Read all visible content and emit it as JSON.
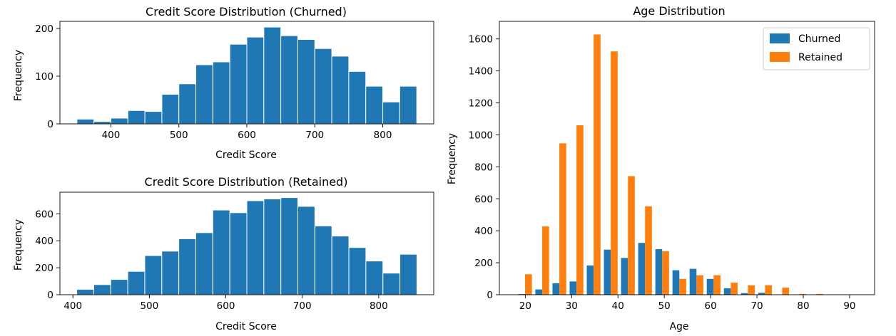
{
  "chart_data": [
    {
      "type": "bar",
      "title": "Credit Score Distribution (Churned)",
      "xlabel": "Credit Score",
      "ylabel": "Frequency",
      "xlim": [
        325,
        875
      ],
      "ylim": [
        0,
        215
      ],
      "xticks": [
        400,
        500,
        600,
        700,
        800
      ],
      "yticks": [
        0,
        100,
        200
      ],
      "bin_edges": [
        350,
        375,
        400,
        425,
        450,
        475,
        500,
        525,
        550,
        575,
        600,
        625,
        650,
        675,
        700,
        725,
        750,
        775,
        800,
        825,
        850
      ],
      "values": [
        10,
        5,
        12,
        28,
        26,
        62,
        84,
        124,
        130,
        167,
        182,
        203,
        185,
        177,
        158,
        142,
        110,
        79,
        46,
        79
      ],
      "color": "#1f77b4",
      "edgecolor": "#ffffff"
    },
    {
      "type": "bar",
      "title": "Credit Score Distribution (Retained)",
      "xlabel": "Credit Score",
      "ylabel": "Frequency",
      "xlim": [
        383,
        872
      ],
      "ylim": [
        0,
        760
      ],
      "xticks": [
        400,
        500,
        600,
        700,
        800
      ],
      "yticks": [
        0,
        200,
        400,
        600
      ],
      "bin_edges": [
        405,
        427.25,
        449.5,
        471.75,
        494,
        516.25,
        538.5,
        560.75,
        583,
        605.25,
        627.5,
        649.75,
        672,
        694.25,
        716.5,
        738.75,
        761,
        783.25,
        805.5,
        827.75,
        850
      ],
      "values": [
        40,
        75,
        113,
        173,
        290,
        323,
        415,
        460,
        628,
        608,
        697,
        710,
        720,
        655,
        510,
        435,
        350,
        250,
        160,
        300
      ],
      "color": "#1f77b4",
      "edgecolor": "#ffffff"
    },
    {
      "type": "bar",
      "title": "Age Distribution",
      "xlabel": "Age",
      "ylabel": "Frequency",
      "xlim": [
        14.4,
        95.4
      ],
      "ylim": [
        0,
        1710
      ],
      "xticks": [
        20,
        30,
        40,
        50,
        60,
        70,
        80,
        90
      ],
      "yticks": [
        0,
        200,
        400,
        600,
        800,
        1000,
        1200,
        1400,
        1600
      ],
      "legend": "top-right",
      "bin_starts": [
        18.1,
        21.8,
        25.5,
        29.2,
        32.9,
        36.6,
        40.3,
        44,
        47.7,
        51.4,
        55.1,
        58.8,
        62.5,
        66.2,
        69.9,
        73.6,
        77.3,
        81,
        84.7,
        88.4
      ],
      "bin_width": 3.7,
      "series": [
        {
          "name": "Churned",
          "color": "#1f77b4",
          "values": [
            4,
            33,
            72,
            83,
            183,
            282,
            230,
            324,
            285,
            153,
            162,
            99,
            40,
            10,
            12,
            0,
            0,
            0,
            0,
            0
          ]
        },
        {
          "name": "Retained",
          "color": "#ff7f0e",
          "values": [
            128,
            427,
            947,
            1060,
            1628,
            1522,
            742,
            553,
            272,
            99,
            122,
            122,
            75,
            59,
            59,
            44,
            5,
            5,
            0,
            0
          ]
        }
      ]
    }
  ]
}
